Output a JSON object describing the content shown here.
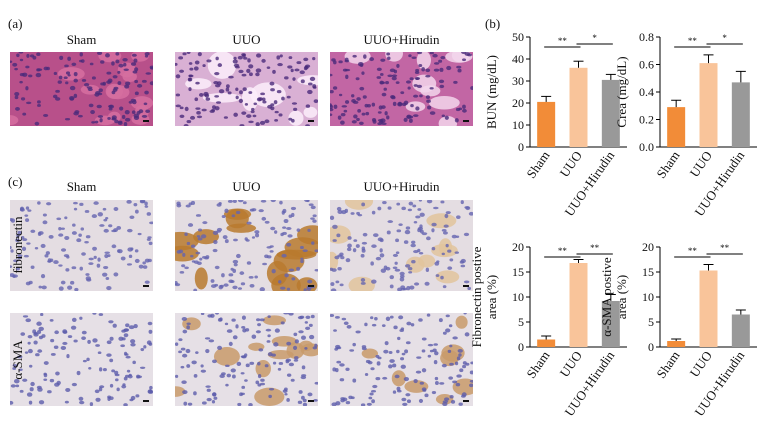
{
  "panels": {
    "a": {
      "label": "(a)",
      "columns": [
        "Sham",
        "UUO",
        "UUO+Hirudin"
      ]
    },
    "b": {
      "label": "(b)"
    },
    "c": {
      "label": "(c)",
      "columns": [
        "Sham",
        "UUO",
        "UUO+Hirudin"
      ],
      "rows": [
        "fibronectin",
        "α-SMA"
      ]
    }
  },
  "chart_data": [
    {
      "type": "bar",
      "ylabel": [
        "BUN (mg/dL)"
      ],
      "categories": [
        "Sham",
        "UUO",
        "UUO+Hirudin"
      ],
      "values": [
        20.5,
        36,
        30.5
      ],
      "errors": [
        2.5,
        3,
        2.5
      ],
      "colors": [
        "#f28c38",
        "#f9c49a",
        "#999999"
      ],
      "ylim": [
        0,
        50
      ],
      "yticks": [
        0,
        10,
        20,
        30,
        40,
        50
      ],
      "annotations": [
        "**",
        "*"
      ]
    },
    {
      "type": "bar",
      "ylabel": [
        "Crea (mg/dL)"
      ],
      "categories": [
        "Sham",
        "UUO",
        "UUO+Hirudin"
      ],
      "values": [
        0.29,
        0.61,
        0.47
      ],
      "errors": [
        0.05,
        0.06,
        0.08
      ],
      "colors": [
        "#f28c38",
        "#f9c49a",
        "#999999"
      ],
      "ylim": [
        0,
        0.8
      ],
      "yticks": [
        {
          "value": 0,
          "label": "0.0"
        },
        0.2,
        0.4,
        0.6,
        0.8
      ],
      "annotations": [
        "**",
        "*"
      ]
    },
    {
      "type": "bar",
      "ylabel": [
        "Fibronectin postive",
        "area (%)"
      ],
      "categories": [
        "Sham",
        "UUO",
        "UUO+Hirudin"
      ],
      "values": [
        1.5,
        16.8,
        9.2
      ],
      "errors": [
        0.7,
        0.7,
        1.3
      ],
      "colors": [
        "#f28c38",
        "#f9c49a",
        "#999999"
      ],
      "ylim": [
        0,
        20
      ],
      "yticks": [
        0,
        5,
        10,
        15,
        20
      ],
      "annotations": [
        "**",
        "**"
      ]
    },
    {
      "type": "bar",
      "ylabel": [
        "α-SMA postive",
        "area (%)"
      ],
      "categories": [
        "Sham",
        "UUO",
        "UUO+Hirudin"
      ],
      "values": [
        1.2,
        15.3,
        6.5
      ],
      "errors": [
        0.4,
        1.2,
        0.9
      ],
      "colors": [
        "#f28c38",
        "#f9c49a",
        "#999999"
      ],
      "ylim": [
        0,
        20
      ],
      "yticks": [
        0,
        5,
        10,
        15,
        20
      ],
      "annotations": [
        "**",
        "**"
      ]
    }
  ]
}
